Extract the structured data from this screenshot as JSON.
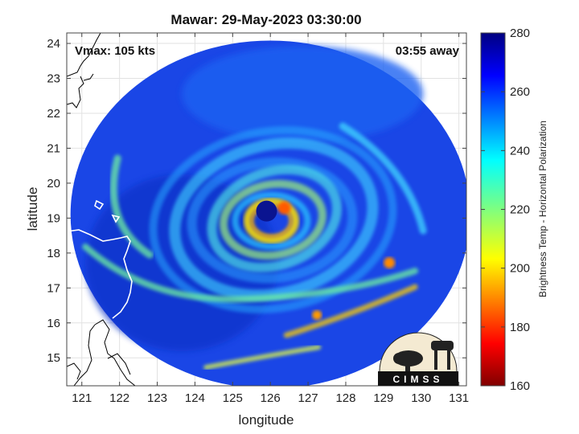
{
  "title": "Mawar: 29-May-2023 03:30:00",
  "annotations": {
    "vmax": "Vmax: 105 kts",
    "away": "03:55 away"
  },
  "logo_text": "CIMSS",
  "chart_data": {
    "type": "heatmap",
    "title": "Mawar: 29-May-2023 03:30:00",
    "xlabel": "longitude",
    "ylabel": "latitude",
    "xlim": [
      120.6,
      131.2
    ],
    "ylim": [
      14.2,
      24.3
    ],
    "xticks": [
      121,
      122,
      123,
      124,
      125,
      126,
      127,
      128,
      129,
      130,
      131
    ],
    "yticks": [
      15,
      16,
      17,
      18,
      19,
      20,
      21,
      22,
      23,
      24
    ],
    "grid": true,
    "swath": {
      "center_lon": 126.0,
      "center_lat": 19.1,
      "radius_deg": 5.3
    },
    "eye": {
      "lon": 125.9,
      "lat": 19.2
    },
    "colorbar": {
      "label": "Brightness Temp - Horizontal Polarization",
      "min": 160,
      "max": 280,
      "ticks": [
        160,
        180,
        200,
        220,
        240,
        260,
        280
      ],
      "colormap": "jet"
    }
  },
  "colors": {
    "background": "#ffffff",
    "coast": "#ffffff",
    "land_outline": "#000000"
  }
}
